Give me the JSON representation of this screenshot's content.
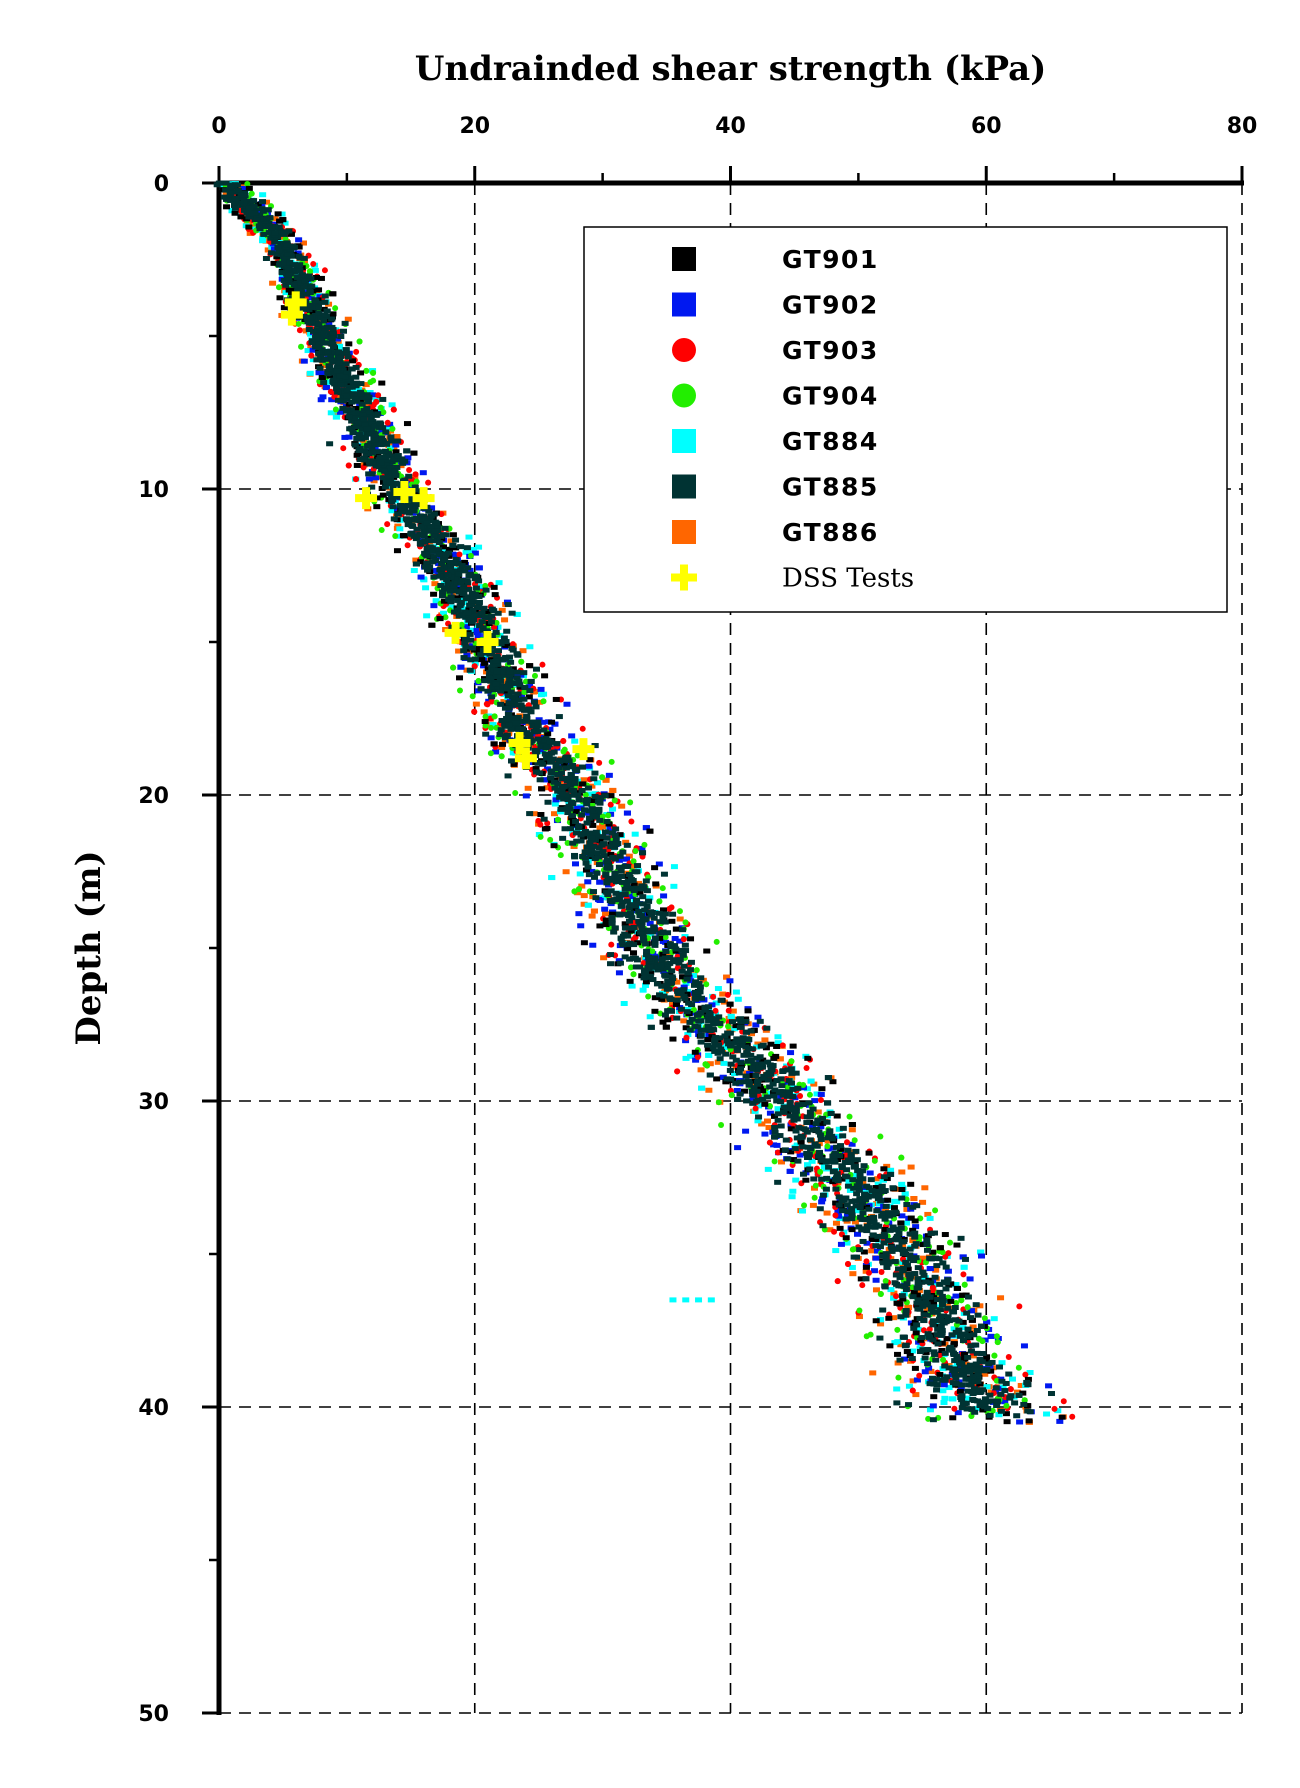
{
  "chart_data": {
    "type": "scatter",
    "title": "",
    "xlabel": "Undrainded shear strength (kPa)",
    "ylabel": "Depth (m)",
    "xlim": [
      0,
      80
    ],
    "ylim": [
      0,
      50
    ],
    "y_inverted": true,
    "x_axis_position": "top",
    "xticks": [
      0,
      20,
      40,
      60,
      80
    ],
    "xticks_minor": [
      10,
      30,
      50,
      70
    ],
    "yticks": [
      0,
      10,
      20,
      30,
      40,
      50
    ],
    "yticks_minor": [
      5,
      15,
      25,
      35,
      45
    ],
    "grid": true,
    "grid_style": "dashed",
    "legend_placement": "top-right",
    "series": [
      {
        "name": "GT901",
        "marker": "square",
        "color": "#000000"
      },
      {
        "name": "GT902",
        "marker": "square",
        "color": "#0018f0"
      },
      {
        "name": "GT903",
        "marker": "circle",
        "color": "#ff0000"
      },
      {
        "name": "GT904",
        "marker": "circle",
        "color": "#22ee00"
      },
      {
        "name": "GT884",
        "marker": "square",
        "color": "#00ffff"
      },
      {
        "name": "GT885",
        "marker": "square",
        "color": "#003333"
      },
      {
        "name": "GT886",
        "marker": "square",
        "color": "#ff6600"
      },
      {
        "name": "DSS Tests",
        "marker": "plus",
        "color": "#ffff00",
        "points": [
          [
            6.0,
            3.9
          ],
          [
            5.7,
            4.3
          ],
          [
            11.5,
            10.3
          ],
          [
            14.5,
            10.1
          ],
          [
            16.0,
            10.3
          ],
          [
            18.5,
            14.7
          ],
          [
            21.0,
            15.0
          ],
          [
            23.5,
            18.3
          ],
          [
            24.0,
            18.8
          ],
          [
            28.5,
            18.5
          ]
        ]
      }
    ],
    "trend_profile": [
      [
        0.5,
        0
      ],
      [
        5,
        2
      ],
      [
        8,
        5
      ],
      [
        11,
        7.5
      ],
      [
        14,
        10
      ],
      [
        17,
        12
      ],
      [
        20,
        14
      ],
      [
        22,
        16
      ],
      [
        24,
        18
      ],
      [
        28,
        20
      ],
      [
        30,
        22
      ],
      [
        33,
        24
      ],
      [
        35,
        26
      ],
      [
        40,
        28
      ],
      [
        44,
        30
      ],
      [
        48,
        32
      ],
      [
        52,
        34
      ],
      [
        55,
        36
      ],
      [
        57,
        38
      ],
      [
        60,
        40
      ],
      [
        61,
        40.5
      ]
    ]
  }
}
